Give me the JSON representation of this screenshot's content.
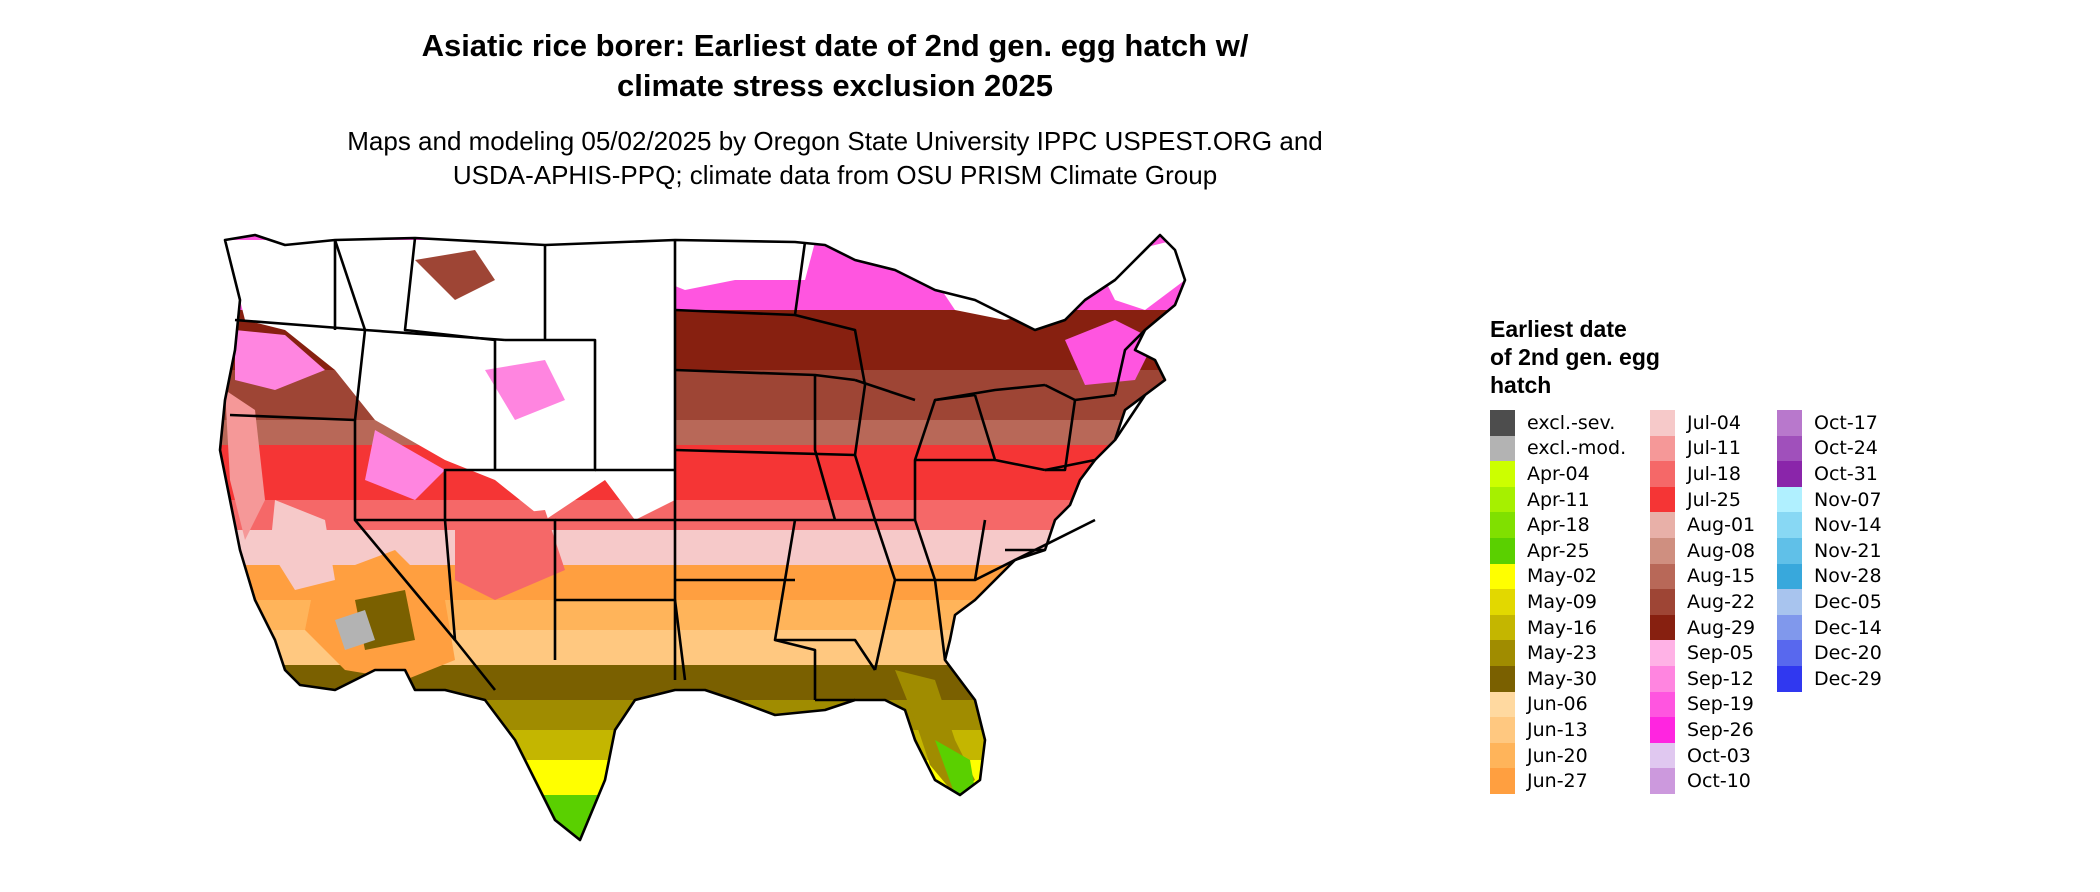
{
  "title_line1": "Asiatic rice borer: Earliest date of 2nd gen. egg hatch w/",
  "title_line2": "climate stress exclusion 2025",
  "subtitle_line1": "Maps and modeling 05/02/2025 by Oregon State University IPPC USPEST.ORG and",
  "subtitle_line2": "USDA-APHIS-PPQ; climate data from OSU PRISM Climate Group",
  "legend": {
    "title_line1": "Earliest date",
    "title_line2": "of 2nd gen. egg",
    "title_line3": "hatch",
    "columns": [
      [
        {
          "label": "excl.-sev.",
          "color": "#4d4d4d"
        },
        {
          "label": "excl.-mod.",
          "color": "#b3b3b3"
        },
        {
          "label": "Apr-04",
          "color": "#ccff00"
        },
        {
          "label": "Apr-11",
          "color": "#a6f000"
        },
        {
          "label": "Apr-18",
          "color": "#80e000"
        },
        {
          "label": "Apr-25",
          "color": "#5ad000"
        },
        {
          "label": "May-02",
          "color": "#ffff00"
        },
        {
          "label": "May-09",
          "color": "#e2d800"
        },
        {
          "label": "May-16",
          "color": "#c4b600"
        },
        {
          "label": "May-23",
          "color": "#a08c00"
        },
        {
          "label": "May-30",
          "color": "#7a6000"
        },
        {
          "label": "Jun-06",
          "color": "#ffd9a0"
        },
        {
          "label": "Jun-13",
          "color": "#ffc880"
        },
        {
          "label": "Jun-20",
          "color": "#ffb45a"
        },
        {
          "label": "Jun-27",
          "color": "#ff9f40"
        }
      ],
      [
        {
          "label": "Jul-04",
          "color": "#f6c9c9"
        },
        {
          "label": "Jul-11",
          "color": "#f59898"
        },
        {
          "label": "Jul-18",
          "color": "#f56868"
        },
        {
          "label": "Jul-25",
          "color": "#f53535"
        },
        {
          "label": "Aug-01",
          "color": "#e8b0a8"
        },
        {
          "label": "Aug-08",
          "color": "#cf8f80"
        },
        {
          "label": "Aug-15",
          "color": "#b86858"
        },
        {
          "label": "Aug-22",
          "color": "#9e4535"
        },
        {
          "label": "Aug-29",
          "color": "#872010"
        },
        {
          "label": "Sep-05",
          "color": "#ffb2e6"
        },
        {
          "label": "Sep-12",
          "color": "#ff85e0"
        },
        {
          "label": "Sep-19",
          "color": "#ff55e0"
        },
        {
          "label": "Sep-26",
          "color": "#ff25e0"
        },
        {
          "label": "Oct-03",
          "color": "#e0c8f0"
        },
        {
          "label": "Oct-10",
          "color": "#cc99dd"
        }
      ],
      [
        {
          "label": "Oct-17",
          "color": "#b878cc"
        },
        {
          "label": "Oct-24",
          "color": "#a050bb"
        },
        {
          "label": "Oct-31",
          "color": "#8a25aa"
        },
        {
          "label": "Nov-07",
          "color": "#b0f0ff"
        },
        {
          "label": "Nov-14",
          "color": "#88d8f4"
        },
        {
          "label": "Nov-21",
          "color": "#60c0e8"
        },
        {
          "label": "Nov-28",
          "color": "#38a8dc"
        },
        {
          "label": "Dec-05",
          "color": "#a8c4ee"
        },
        {
          "label": "Dec-14",
          "color": "#8098ec"
        },
        {
          "label": "Dec-20",
          "color": "#5868ee"
        },
        {
          "label": "Dec-29",
          "color": "#3038f0"
        }
      ]
    ]
  }
}
